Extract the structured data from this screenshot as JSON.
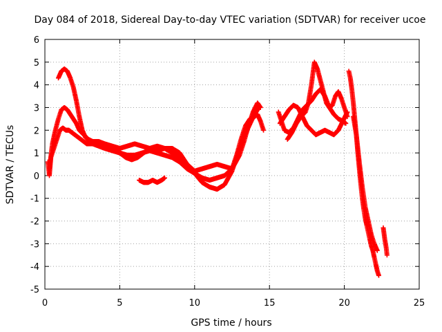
{
  "chart_data": {
    "type": "scatter",
    "title": "Day 084 of 2018, Sidereal Day-to-day VTEC variation (SDTVAR) for receiver ucoe",
    "xlabel": "GPS time / hours",
    "ylabel": "SDTVAR / TECUs",
    "xlim": [
      0,
      25
    ],
    "ylim": [
      -5,
      6
    ],
    "xticks": [
      0,
      5,
      10,
      15,
      20,
      25
    ],
    "yticks": [
      -5,
      -4,
      -3,
      -2,
      -1,
      0,
      1,
      2,
      3,
      4,
      5,
      6
    ],
    "grid": true,
    "marker": "plus",
    "color": "#ff0000",
    "series": [
      {
        "x": [
          0.2,
          0.3,
          0.4,
          0.6,
          0.8,
          1.0,
          1.2,
          1.4,
          1.6,
          1.8,
          2.0,
          2.2,
          2.4,
          2.6,
          2.8,
          3.0,
          3.2,
          3.6,
          4.0,
          4.5,
          5.0,
          5.5,
          6.0,
          6.5,
          7.0,
          7.5,
          8.0,
          8.5,
          9.0,
          9.5,
          10.0,
          10.5,
          11.0,
          11.5,
          12.0,
          12.5,
          12.8,
          13.1,
          13.4,
          13.7,
          14.0,
          14.2,
          14.4,
          14.6
        ],
        "y": [
          0.6,
          0.0,
          0.8,
          1.2,
          1.6,
          2.0,
          2.1,
          2.0,
          2.0,
          1.9,
          1.8,
          1.7,
          1.6,
          1.5,
          1.4,
          1.4,
          1.4,
          1.3,
          1.2,
          1.1,
          1.0,
          0.9,
          0.9,
          1.0,
          1.1,
          1.0,
          0.9,
          0.8,
          0.6,
          0.3,
          0.1,
          -0.1,
          -0.2,
          -0.1,
          0.0,
          0.3,
          0.9,
          1.6,
          2.2,
          2.5,
          2.6,
          2.7,
          2.4,
          2.0
        ]
      },
      {
        "x": [
          0.3,
          0.5,
          0.7,
          0.9,
          1.1,
          1.3,
          1.5,
          1.7,
          1.9,
          2.1,
          2.3,
          2.6,
          2.9,
          3.2,
          3.6,
          4.0,
          4.5,
          5.0,
          5.5,
          6.0,
          6.5,
          7.0,
          7.5,
          8.0,
          8.5,
          9.0,
          9.5,
          10.0,
          10.5,
          11.0,
          11.5,
          12.0,
          12.5,
          13.0,
          13.5,
          14.0,
          14.3
        ],
        "y": [
          0.3,
          1.4,
          2.0,
          2.5,
          2.9,
          3.0,
          2.9,
          2.7,
          2.5,
          2.3,
          2.0,
          1.8,
          1.6,
          1.5,
          1.5,
          1.4,
          1.3,
          1.2,
          1.3,
          1.4,
          1.3,
          1.2,
          1.1,
          1.2,
          1.2,
          1.0,
          0.5,
          0.1,
          -0.3,
          -0.5,
          -0.6,
          -0.4,
          0.2,
          1.2,
          2.0,
          2.7,
          3.0
        ]
      },
      {
        "x": [
          0.9,
          1.1,
          1.3,
          1.5,
          1.7,
          1.9,
          2.1,
          2.3,
          2.5,
          2.7,
          3.0,
          3.4,
          3.8,
          4.2,
          4.6,
          5.0,
          5.4,
          5.8,
          6.2,
          6.6,
          7.0,
          7.5,
          8.0,
          8.5,
          9.0,
          9.5,
          10.0,
          10.5,
          11.0,
          11.5,
          12.0,
          12.5,
          13.0,
          13.3,
          13.6,
          13.9,
          14.2,
          14.4
        ],
        "y": [
          4.3,
          4.6,
          4.7,
          4.6,
          4.3,
          3.9,
          3.3,
          2.6,
          2.0,
          1.7,
          1.5,
          1.4,
          1.4,
          1.3,
          1.2,
          1.0,
          0.8,
          0.7,
          0.8,
          1.0,
          1.2,
          1.3,
          1.2,
          1.0,
          0.8,
          0.5,
          0.2,
          0.3,
          0.4,
          0.5,
          0.4,
          0.3,
          0.9,
          1.5,
          2.2,
          2.8,
          3.2,
          3.0
        ]
      },
      {
        "x": [
          6.3,
          6.6,
          6.9,
          7.2,
          7.5,
          7.8,
          8.0
        ],
        "y": [
          -0.2,
          -0.3,
          -0.3,
          -0.2,
          -0.3,
          -0.2,
          -0.1
        ]
      },
      {
        "x": [
          15.6,
          15.8,
          16.0,
          16.3,
          16.6,
          16.9,
          17.2,
          17.5,
          17.8,
          18.1,
          18.4,
          18.7,
          19.0,
          19.3,
          19.6,
          19.9,
          20.1
        ],
        "y": [
          2.8,
          2.4,
          2.0,
          1.9,
          2.1,
          2.5,
          2.9,
          3.1,
          3.3,
          3.6,
          3.8,
          3.5,
          3.0,
          2.7,
          2.5,
          2.4,
          2.3
        ]
      },
      {
        "x": [
          15.7,
          16.0,
          16.3,
          16.6,
          16.9,
          17.2,
          17.5,
          17.8,
          18.1,
          18.4,
          18.7,
          19.0,
          19.3,
          19.6,
          19.9,
          20.2
        ],
        "y": [
          2.3,
          2.6,
          2.9,
          3.1,
          3.0,
          2.6,
          2.2,
          2.0,
          1.8,
          1.9,
          2.0,
          1.9,
          1.8,
          2.0,
          2.4,
          2.8
        ]
      },
      {
        "x": [
          16.2,
          16.5,
          16.8,
          17.1,
          17.4,
          17.6,
          17.8,
          18.0,
          18.2,
          18.4,
          18.6,
          18.8,
          19.0,
          19.2,
          19.4,
          19.6,
          19.8,
          20.0,
          20.2
        ],
        "y": [
          1.6,
          1.9,
          2.3,
          2.6,
          2.8,
          3.2,
          4.0,
          5.0,
          4.7,
          4.2,
          3.7,
          3.2,
          3.0,
          3.1,
          3.5,
          3.7,
          3.4,
          3.0,
          2.6
        ]
      },
      {
        "x": [
          20.3,
          20.4,
          20.5,
          20.6,
          20.7,
          20.8,
          20.9,
          21.0,
          21.1,
          21.2,
          21.3,
          21.4,
          21.5,
          21.6,
          21.7,
          21.8,
          21.9,
          22.0,
          22.1,
          22.2,
          22.3
        ],
        "y": [
          4.6,
          4.3,
          3.8,
          3.2,
          2.5,
          1.8,
          1.0,
          0.3,
          -0.4,
          -1.0,
          -1.5,
          -1.9,
          -2.2,
          -2.5,
          -2.8,
          -3.1,
          -3.3,
          -3.6,
          -3.9,
          -4.2,
          -4.4
        ]
      },
      {
        "x": [
          20.6,
          20.8,
          21.0,
          21.2,
          21.4,
          21.6,
          21.8,
          22.0,
          22.2
        ],
        "y": [
          2.6,
          1.8,
          0.6,
          -0.5,
          -1.4,
          -2.0,
          -2.6,
          -3.0,
          -3.3
        ]
      },
      {
        "x": [
          22.6,
          22.7,
          22.8,
          22.85
        ],
        "y": [
          -2.3,
          -2.8,
          -3.2,
          -3.5
        ]
      }
    ]
  }
}
